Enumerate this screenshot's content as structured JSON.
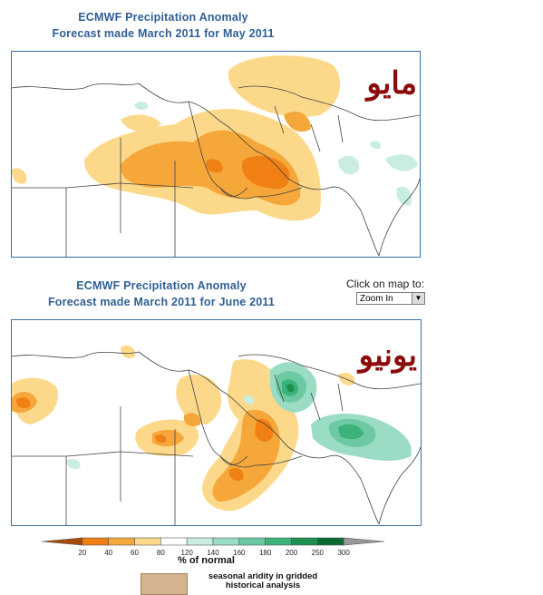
{
  "maps": [
    {
      "title_line1": "ECMWF Precipitation Anomaly",
      "title_line2": "Forecast made March 2011 for May 2011",
      "arabic_label": "مايو"
    },
    {
      "title_line1": "ECMWF Precipitation Anomaly",
      "title_line2": "Forecast made March 2011 for June 2011",
      "arabic_label": "يونيو"
    }
  ],
  "controls": {
    "click_label": "Click on map to:",
    "zoom_value": "Zoom In"
  },
  "legend": {
    "ticks": [
      "20",
      "40",
      "60",
      "80",
      "120",
      "140",
      "160",
      "180",
      "200",
      "250",
      "300"
    ],
    "colors": [
      "#a54a08",
      "#f07f14",
      "#f5a73a",
      "#fcd98a",
      "#ffffff",
      "#c9eee0",
      "#9adcc4",
      "#6cc9a3",
      "#3ab27a",
      "#1d9051",
      "#0b6a34",
      "#999999"
    ],
    "unit": "% of normal",
    "aridity_label": "seasonal aridity in gridded historical analysis",
    "aridity_color": "#d4b48f"
  }
}
